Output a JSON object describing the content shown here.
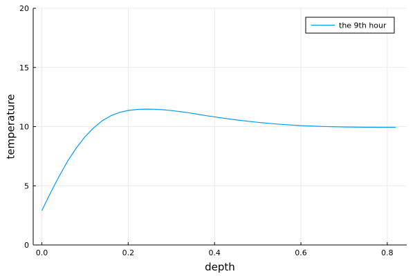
{
  "chart_data": {
    "type": "line",
    "title": "",
    "xlabel": "depth",
    "ylabel": "temperature",
    "xlim": [
      -0.02,
      0.845
    ],
    "ylim": [
      0,
      20
    ],
    "xticks": [
      0.0,
      0.2,
      0.4,
      0.6,
      0.8
    ],
    "xtick_labels": [
      "0.0",
      "0.2",
      "0.4",
      "0.6",
      "0.8"
    ],
    "yticks": [
      0,
      5,
      10,
      15,
      20
    ],
    "ytick_labels": [
      "0",
      "5",
      "10",
      "15",
      "20"
    ],
    "grid": true,
    "legend_position": "top-right",
    "series": [
      {
        "name": "the 9th hour",
        "color": "#009af9",
        "x": [
          0.0,
          0.02,
          0.04,
          0.06,
          0.08,
          0.1,
          0.12,
          0.14,
          0.16,
          0.18,
          0.2,
          0.22,
          0.24,
          0.26,
          0.28,
          0.3,
          0.32,
          0.34,
          0.36,
          0.38,
          0.4,
          0.45,
          0.5,
          0.55,
          0.6,
          0.65,
          0.7,
          0.75,
          0.8,
          0.82
        ],
        "y": [
          2.9,
          4.4,
          5.8,
          7.1,
          8.2,
          9.15,
          9.9,
          10.5,
          10.92,
          11.2,
          11.37,
          11.45,
          11.48,
          11.47,
          11.43,
          11.36,
          11.27,
          11.17,
          11.05,
          10.93,
          10.82,
          10.57,
          10.36,
          10.2,
          10.08,
          10.01,
          9.97,
          9.95,
          9.94,
          9.94
        ]
      }
    ]
  }
}
